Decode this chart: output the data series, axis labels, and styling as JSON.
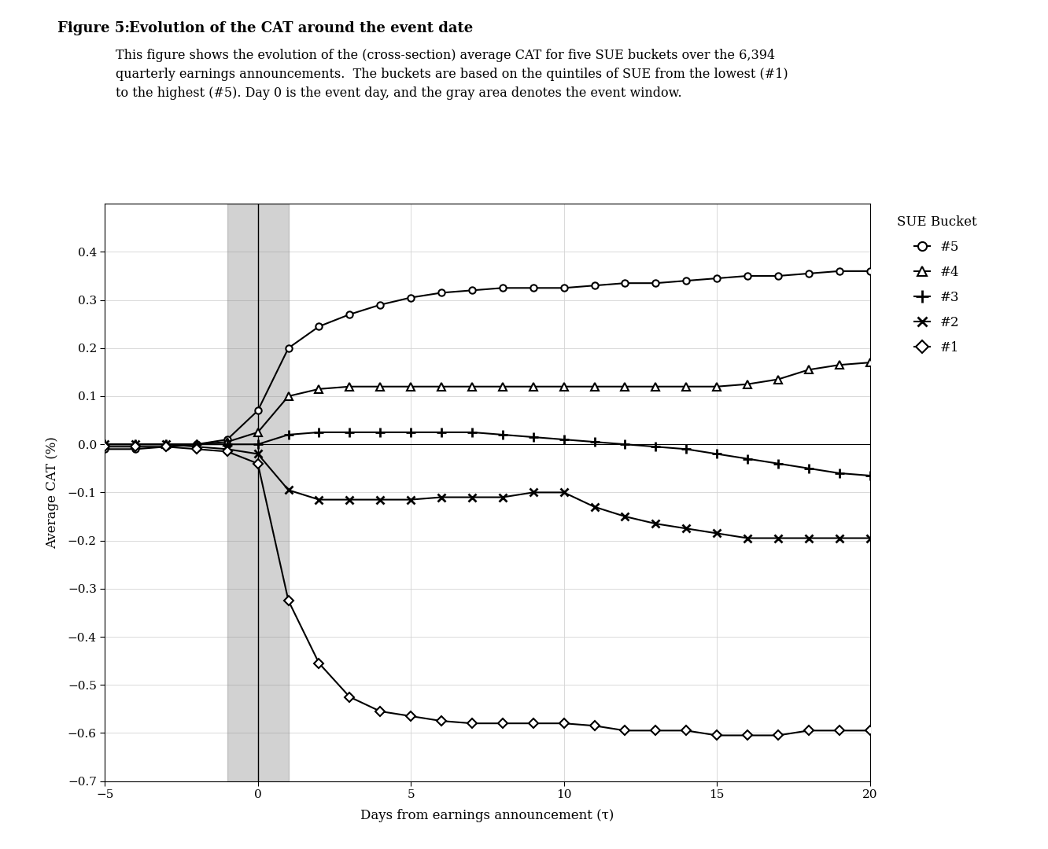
{
  "title_bold": "Figure 5: ",
  "title_rest": "Evolution of the CAT around the event date",
  "caption": "This figure shows the evolution of the (cross-section) average CAT for five SUE buckets over the 6,394\nquarterly earnings announcements.  The buckets are based on the quintiles of SUE from the lowest (#1)\nto the highest (#5). Day 0 is the event day, and the gray area denotes the event window.",
  "xlabel": "Days from earnings announcement (τ)",
  "ylabel": "Average CAT (%)",
  "xlim": [
    -5,
    20
  ],
  "ylim": [
    -0.7,
    0.5
  ],
  "yticks": [
    -0.7,
    -0.6,
    -0.5,
    -0.4,
    -0.3,
    -0.2,
    -0.1,
    0.0,
    0.1,
    0.2,
    0.3,
    0.4
  ],
  "xticks": [
    -5,
    0,
    5,
    10,
    15,
    20
  ],
  "gray_region": [
    -1,
    1
  ],
  "hline_y": 0.0,
  "legend_title": "SUE Bucket",
  "series": {
    "sue5": {
      "label": "#5",
      "x": [
        -5,
        -4,
        -3,
        -2,
        -1,
        0,
        1,
        2,
        3,
        4,
        5,
        6,
        7,
        8,
        9,
        10,
        11,
        12,
        13,
        14,
        15,
        16,
        17,
        18,
        19,
        20
      ],
      "y": [
        -0.01,
        -0.01,
        -0.005,
        0.0,
        0.01,
        0.07,
        0.2,
        0.245,
        0.27,
        0.29,
        0.305,
        0.315,
        0.32,
        0.325,
        0.325,
        0.325,
        0.33,
        0.335,
        0.335,
        0.34,
        0.345,
        0.35,
        0.35,
        0.355,
        0.36,
        0.36
      ]
    },
    "sue4": {
      "label": "#4",
      "x": [
        -5,
        -4,
        -3,
        -2,
        -1,
        0,
        1,
        2,
        3,
        4,
        5,
        6,
        7,
        8,
        9,
        10,
        11,
        12,
        13,
        14,
        15,
        16,
        17,
        18,
        19,
        20
      ],
      "y": [
        0.0,
        0.0,
        0.0,
        0.0,
        0.005,
        0.025,
        0.1,
        0.115,
        0.12,
        0.12,
        0.12,
        0.12,
        0.12,
        0.12,
        0.12,
        0.12,
        0.12,
        0.12,
        0.12,
        0.12,
        0.12,
        0.125,
        0.135,
        0.155,
        0.165,
        0.17
      ]
    },
    "sue3": {
      "label": "#3",
      "x": [
        -5,
        -4,
        -3,
        -2,
        -1,
        0,
        1,
        2,
        3,
        4,
        5,
        6,
        7,
        8,
        9,
        10,
        11,
        12,
        13,
        14,
        15,
        16,
        17,
        18,
        19,
        20
      ],
      "y": [
        0.0,
        0.0,
        0.0,
        0.0,
        0.0,
        0.0,
        0.02,
        0.025,
        0.025,
        0.025,
        0.025,
        0.025,
        0.025,
        0.02,
        0.015,
        0.01,
        0.005,
        0.0,
        -0.005,
        -0.01,
        -0.02,
        -0.03,
        -0.04,
        -0.05,
        -0.06,
        -0.065
      ]
    },
    "sue2": {
      "label": "#2",
      "x": [
        -5,
        -4,
        -3,
        -2,
        -1,
        0,
        1,
        2,
        3,
        4,
        5,
        6,
        7,
        8,
        9,
        10,
        11,
        12,
        13,
        14,
        15,
        16,
        17,
        18,
        19,
        20
      ],
      "y": [
        0.0,
        0.0,
        0.0,
        -0.005,
        -0.01,
        -0.02,
        -0.095,
        -0.115,
        -0.115,
        -0.115,
        -0.115,
        -0.11,
        -0.11,
        -0.11,
        -0.1,
        -0.1,
        -0.13,
        -0.15,
        -0.165,
        -0.175,
        -0.185,
        -0.195,
        -0.195,
        -0.195,
        -0.195,
        -0.195
      ]
    },
    "sue1": {
      "label": "#1",
      "x": [
        -5,
        -4,
        -3,
        -2,
        -1,
        0,
        1,
        2,
        3,
        4,
        5,
        6,
        7,
        8,
        9,
        10,
        11,
        12,
        13,
        14,
        15,
        16,
        17,
        18,
        19,
        20
      ],
      "y": [
        -0.005,
        -0.005,
        -0.005,
        -0.01,
        -0.015,
        -0.04,
        -0.325,
        -0.455,
        -0.525,
        -0.555,
        -0.565,
        -0.575,
        -0.58,
        -0.58,
        -0.58,
        -0.58,
        -0.585,
        -0.595,
        -0.595,
        -0.595,
        -0.605,
        -0.605,
        -0.605,
        -0.595,
        -0.595,
        -0.595
      ]
    }
  }
}
